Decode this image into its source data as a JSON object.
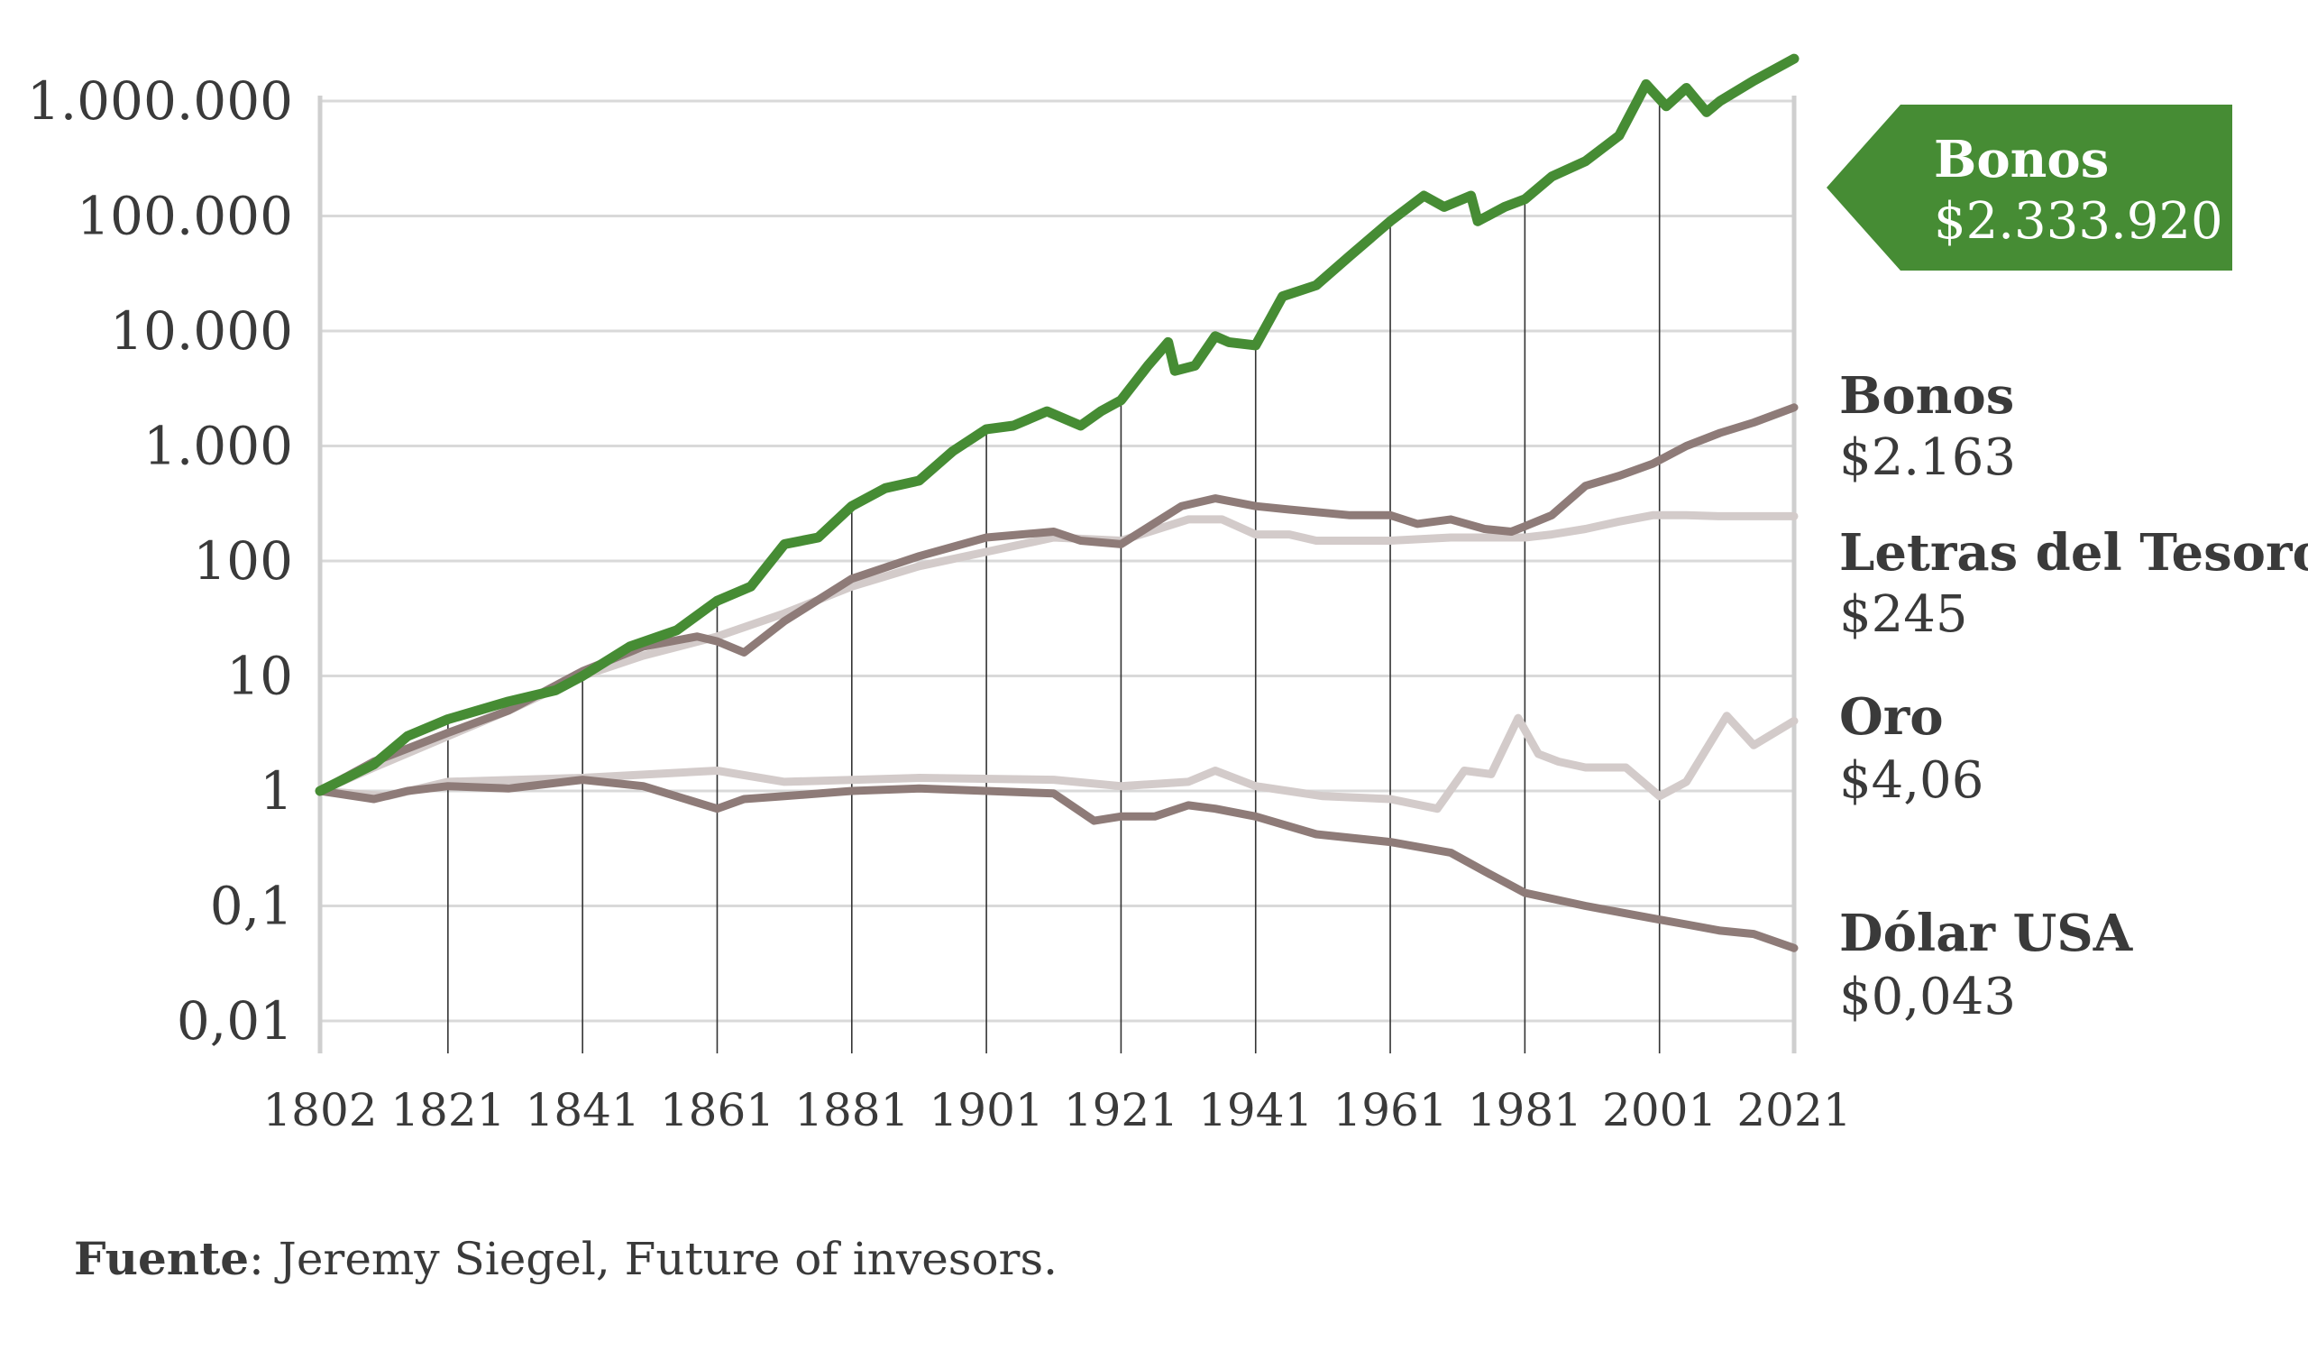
{
  "chart_data": {
    "type": "line",
    "y_scale": "log",
    "ylim": [
      0.01,
      1000000
    ],
    "y_ticks": [
      0.01,
      0.1,
      1,
      10,
      100,
      1000,
      10000,
      100000,
      1000000
    ],
    "y_tick_labels": [
      "0,01",
      "0,1",
      "1",
      "10",
      "100",
      "1.000",
      "10.000",
      "100.000",
      "1.000.000"
    ],
    "x_ticks": [
      1802,
      1821,
      1841,
      1861,
      1881,
      1901,
      1921,
      1941,
      1961,
      1981,
      2001,
      2021
    ],
    "x_tick_labels": [
      "1802",
      "1821",
      "1841",
      "1861",
      "1881",
      "1901",
      "1921",
      "1941",
      "1961",
      "1981",
      "2001",
      "2021"
    ],
    "xlim": [
      1802,
      2021
    ],
    "grid": "horizontal",
    "colors": {
      "stocks": "#468c34",
      "bonds": "#8e7b78",
      "bills": "#d3cbca",
      "gold": "#d3cbca",
      "dollar": "#8e7b78",
      "grid": "#d9d9d9",
      "axis": "#cfcfcf",
      "vline": "#333333"
    },
    "series": [
      {
        "key": "stocks",
        "name": "Bonos",
        "end_value": "$2.333.920",
        "points": [
          [
            1802,
            1
          ],
          [
            1810,
            1.7
          ],
          [
            1815,
            3
          ],
          [
            1821,
            4.2
          ],
          [
            1830,
            6
          ],
          [
            1837,
            7.5
          ],
          [
            1841,
            10
          ],
          [
            1848,
            18
          ],
          [
            1855,
            25
          ],
          [
            1861,
            45
          ],
          [
            1866,
            60
          ],
          [
            1871,
            140
          ],
          [
            1876,
            160
          ],
          [
            1881,
            300
          ],
          [
            1886,
            430
          ],
          [
            1891,
            500
          ],
          [
            1896,
            900
          ],
          [
            1901,
            1400
          ],
          [
            1905,
            1500
          ],
          [
            1910,
            2000
          ],
          [
            1915,
            1500
          ],
          [
            1918,
            2000
          ],
          [
            1921,
            2500
          ],
          [
            1925,
            5000
          ],
          [
            1928,
            8000
          ],
          [
            1929,
            4500
          ],
          [
            1932,
            5000
          ],
          [
            1935,
            9000
          ],
          [
            1937,
            8000
          ],
          [
            1941,
            7500
          ],
          [
            1945,
            20000
          ],
          [
            1950,
            25000
          ],
          [
            1955,
            45000
          ],
          [
            1961,
            90000
          ],
          [
            1966,
            150000
          ],
          [
            1969,
            120000
          ],
          [
            1973,
            150000
          ],
          [
            1974,
            90000
          ],
          [
            1978,
            120000
          ],
          [
            1981,
            140000
          ],
          [
            1985,
            220000
          ],
          [
            1990,
            300000
          ],
          [
            1995,
            500000
          ],
          [
            1999,
            1400000
          ],
          [
            2002,
            900000
          ],
          [
            2005,
            1300000
          ],
          [
            2008,
            800000
          ],
          [
            2010,
            1000000
          ],
          [
            2015,
            1500000
          ],
          [
            2021,
            2333920
          ]
        ]
      },
      {
        "key": "bonds",
        "name": "Bonos",
        "end_value": "$2.163",
        "points": [
          [
            1802,
            1
          ],
          [
            1810,
            1.8
          ],
          [
            1821,
            3.2
          ],
          [
            1830,
            5
          ],
          [
            1841,
            11
          ],
          [
            1850,
            18
          ],
          [
            1858,
            22
          ],
          [
            1861,
            20
          ],
          [
            1865,
            16
          ],
          [
            1871,
            30
          ],
          [
            1881,
            70
          ],
          [
            1891,
            110
          ],
          [
            1901,
            160
          ],
          [
            1911,
            180
          ],
          [
            1915,
            150
          ],
          [
            1921,
            140
          ],
          [
            1930,
            300
          ],
          [
            1935,
            350
          ],
          [
            1941,
            300
          ],
          [
            1946,
            280
          ],
          [
            1955,
            250
          ],
          [
            1961,
            250
          ],
          [
            1965,
            210
          ],
          [
            1970,
            230
          ],
          [
            1975,
            190
          ],
          [
            1979,
            180
          ],
          [
            1981,
            200
          ],
          [
            1985,
            250
          ],
          [
            1990,
            450
          ],
          [
            1995,
            550
          ],
          [
            2000,
            700
          ],
          [
            2005,
            1000
          ],
          [
            2010,
            1300
          ],
          [
            2015,
            1600
          ],
          [
            2021,
            2163
          ]
        ]
      },
      {
        "key": "bills",
        "name": "Letras del Tesoro",
        "end_value": "$245",
        "points": [
          [
            1802,
            1
          ],
          [
            1810,
            1.6
          ],
          [
            1821,
            3
          ],
          [
            1830,
            5
          ],
          [
            1841,
            10
          ],
          [
            1850,
            15
          ],
          [
            1861,
            22
          ],
          [
            1871,
            35
          ],
          [
            1881,
            60
          ],
          [
            1891,
            90
          ],
          [
            1901,
            120
          ],
          [
            1911,
            160
          ],
          [
            1921,
            150
          ],
          [
            1931,
            230
          ],
          [
            1936,
            230
          ],
          [
            1941,
            170
          ],
          [
            1946,
            170
          ],
          [
            1950,
            150
          ],
          [
            1955,
            150
          ],
          [
            1961,
            150
          ],
          [
            1970,
            160
          ],
          [
            1981,
            160
          ],
          [
            1985,
            170
          ],
          [
            1990,
            190
          ],
          [
            1995,
            220
          ],
          [
            2000,
            250
          ],
          [
            2005,
            250
          ],
          [
            2010,
            245
          ],
          [
            2015,
            245
          ],
          [
            2021,
            245
          ]
        ]
      },
      {
        "key": "gold",
        "name": "Oro",
        "end_value": "$4,06",
        "points": [
          [
            1802,
            1
          ],
          [
            1812,
            0.9
          ],
          [
            1821,
            1.2
          ],
          [
            1841,
            1.3
          ],
          [
            1861,
            1.5
          ],
          [
            1871,
            1.2
          ],
          [
            1891,
            1.3
          ],
          [
            1911,
            1.25
          ],
          [
            1921,
            1.1
          ],
          [
            1931,
            1.2
          ],
          [
            1935,
            1.5
          ],
          [
            1941,
            1.1
          ],
          [
            1951,
            0.9
          ],
          [
            1961,
            0.85
          ],
          [
            1968,
            0.7
          ],
          [
            1972,
            1.5
          ],
          [
            1976,
            1.4
          ],
          [
            1980,
            4.3
          ],
          [
            1983,
            2.1
          ],
          [
            1986,
            1.8
          ],
          [
            1990,
            1.6
          ],
          [
            1996,
            1.6
          ],
          [
            2001,
            0.9
          ],
          [
            2005,
            1.2
          ],
          [
            2011,
            4.5
          ],
          [
            2015,
            2.5
          ],
          [
            2021,
            4.06
          ]
        ]
      },
      {
        "key": "dollar",
        "name": "Dólar USA",
        "end_value": "$0,043",
        "points": [
          [
            1802,
            1
          ],
          [
            1810,
            0.85
          ],
          [
            1815,
            1.0
          ],
          [
            1821,
            1.1
          ],
          [
            1830,
            1.05
          ],
          [
            1841,
            1.25
          ],
          [
            1850,
            1.1
          ],
          [
            1861,
            0.7
          ],
          [
            1865,
            0.85
          ],
          [
            1871,
            0.9
          ],
          [
            1881,
            1.0
          ],
          [
            1891,
            1.05
          ],
          [
            1901,
            1.0
          ],
          [
            1911,
            0.95
          ],
          [
            1917,
            0.55
          ],
          [
            1921,
            0.6
          ],
          [
            1926,
            0.6
          ],
          [
            1931,
            0.75
          ],
          [
            1935,
            0.7
          ],
          [
            1941,
            0.6
          ],
          [
            1950,
            0.42
          ],
          [
            1961,
            0.36
          ],
          [
            1970,
            0.29
          ],
          [
            1975,
            0.2
          ],
          [
            1981,
            0.13
          ],
          [
            1990,
            0.1
          ],
          [
            2000,
            0.078
          ],
          [
            2005,
            0.069
          ],
          [
            2010,
            0.061
          ],
          [
            2015,
            0.057
          ],
          [
            2021,
            0.043
          ]
        ]
      }
    ]
  },
  "source": {
    "label": "Fuente",
    "text": ": Jeremy Siegel, Future of invesors."
  }
}
